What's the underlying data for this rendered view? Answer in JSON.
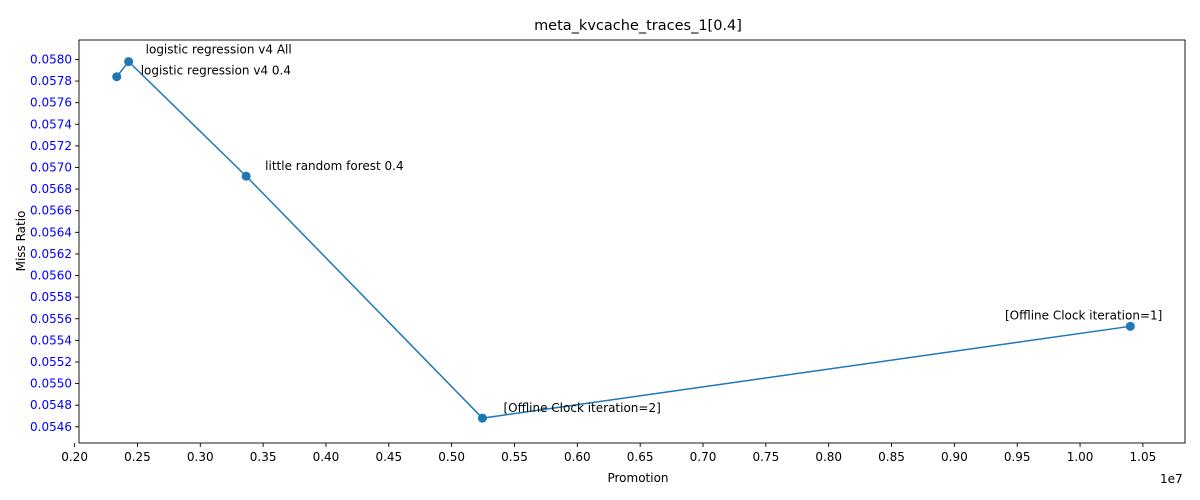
{
  "chart_data": {
    "type": "line",
    "title": "meta_kvcache_traces_1[0.4]",
    "xlabel": "Promotion",
    "ylabel": "Miss Ratio",
    "x_offset_label": "1e7",
    "xlim": [
      0.2035,
      1.0835
    ],
    "ylim": [
      0.05445,
      0.05818
    ],
    "xticks": [
      0.2,
      0.25,
      0.3,
      0.35,
      0.4,
      0.45,
      0.5,
      0.55,
      0.6,
      0.65,
      0.7,
      0.75,
      0.8,
      0.85,
      0.9,
      0.95,
      1.0,
      1.05
    ],
    "xtick_labels": [
      "0.20",
      "0.25",
      "0.30",
      "0.35",
      "0.40",
      "0.45",
      "0.50",
      "0.55",
      "0.60",
      "0.65",
      "0.70",
      "0.75",
      "0.80",
      "0.85",
      "0.90",
      "0.95",
      "1.00",
      "1.05"
    ],
    "yticks": [
      0.0546,
      0.0548,
      0.055,
      0.0552,
      0.0554,
      0.0556,
      0.0558,
      0.056,
      0.0562,
      0.0564,
      0.0566,
      0.0568,
      0.057,
      0.0572,
      0.0574,
      0.0576,
      0.0578,
      0.058
    ],
    "ytick_labels": [
      "0.0546",
      "0.0548",
      "0.0550",
      "0.0552",
      "0.0554",
      "0.0556",
      "0.0558",
      "0.0560",
      "0.0562",
      "0.0564",
      "0.0566",
      "0.0568",
      "0.0570",
      "0.0572",
      "0.0574",
      "0.0576",
      "0.0578",
      "0.0580"
    ],
    "ytick_color": "#0000ff",
    "grid": false,
    "series": [
      {
        "color": "#1f77b4",
        "points": [
          {
            "x": 0.2335,
            "y": 0.05784,
            "label": "logistic regression v4 0.4"
          },
          {
            "x": 0.243,
            "y": 0.05798,
            "label": "logistic regression v4 All"
          },
          {
            "x": 0.3365,
            "y": 0.05692,
            "label": "little random forest 0.4"
          },
          {
            "x": 0.5245,
            "y": 0.05468,
            "label": "[Offline Clock iteration=2]"
          },
          {
            "x": 1.04,
            "y": 0.05553,
            "label": "[Offline Clock iteration=1]"
          }
        ]
      }
    ]
  }
}
